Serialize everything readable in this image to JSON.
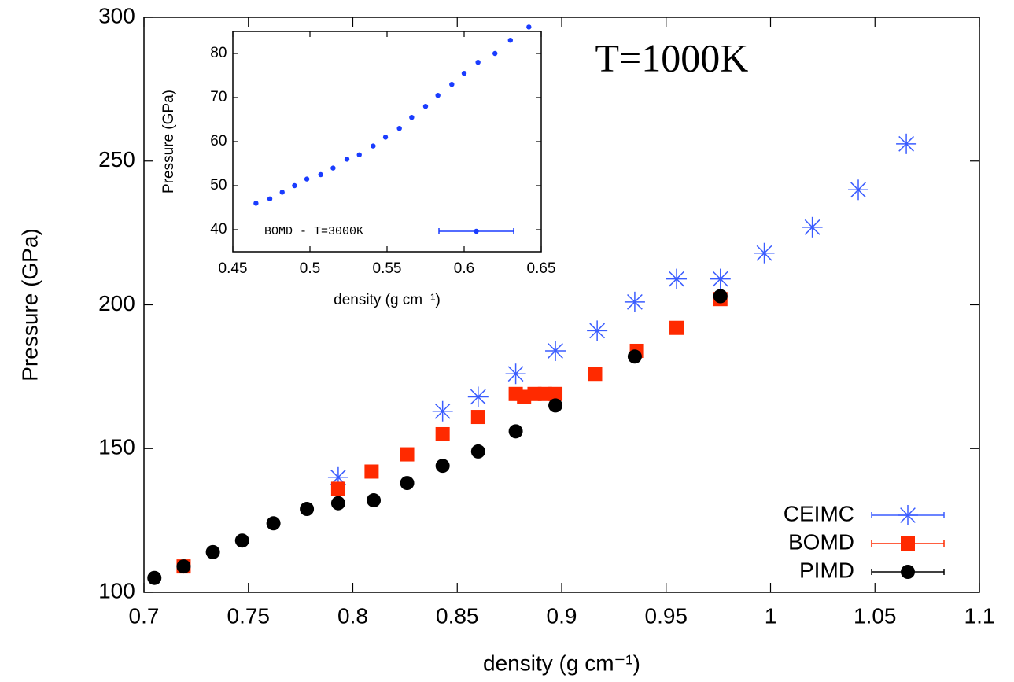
{
  "chart_data": [
    {
      "type": "scatter",
      "xlabel": "density (g cm⁻¹)",
      "ylabel": "Pressure (GPa)",
      "annotation": "T=1000K",
      "xlim": [
        0.7,
        1.1
      ],
      "ylim": [
        100,
        300
      ],
      "xticks": [
        0.7,
        0.75,
        0.8,
        0.85,
        0.9,
        0.95,
        1,
        1.05,
        1.1
      ],
      "yticks": [
        100,
        150,
        200,
        250,
        300
      ],
      "legend": "lower right",
      "series": [
        {
          "name": "CEIMC",
          "color": "#3a5cff",
          "marker": "asterisk",
          "x": [
            0.793,
            0.843,
            0.86,
            0.878,
            0.897,
            0.917,
            0.935,
            0.955,
            0.976,
            0.997,
            1.02,
            1.042,
            1.065
          ],
          "values": [
            140,
            163,
            168,
            176,
            184,
            191,
            201,
            209,
            209,
            218,
            227,
            240,
            256
          ]
        },
        {
          "name": "BOMD",
          "color": "#ff2a00",
          "marker": "square",
          "x": [
            0.719,
            0.793,
            0.809,
            0.826,
            0.843,
            0.86,
            0.878,
            0.882,
            0.887,
            0.892,
            0.897,
            0.916,
            0.936,
            0.955,
            0.976
          ],
          "values": [
            109,
            136,
            142,
            148,
            155,
            161,
            169,
            168,
            169,
            169,
            169,
            176,
            184,
            192,
            202
          ]
        },
        {
          "name": "PIMD",
          "color": "#000000",
          "marker": "circle",
          "x": [
            0.705,
            0.719,
            0.733,
            0.747,
            0.762,
            0.778,
            0.793,
            0.81,
            0.826,
            0.843,
            0.86,
            0.878,
            0.897,
            0.935,
            0.976
          ],
          "values": [
            105,
            109,
            114,
            118,
            124,
            129,
            131,
            132,
            138,
            144,
            149,
            156,
            165,
            182,
            203
          ]
        }
      ]
    },
    {
      "type": "scatter",
      "xlabel": "density (g cm⁻¹)",
      "ylabel": "Pressure (GPa)",
      "xlim": [
        0.45,
        0.65
      ],
      "ylim": [
        35,
        85
      ],
      "xticks": [
        0.45,
        0.5,
        0.55,
        0.6,
        0.65
      ],
      "yticks": [
        40,
        50,
        60,
        70,
        80
      ],
      "legend": "lower left",
      "series": [
        {
          "name": "BOMD - T=3000K",
          "color": "#1a3cff",
          "marker": "dot",
          "x": [
            0.465,
            0.474,
            0.482,
            0.49,
            0.498,
            0.507,
            0.515,
            0.524,
            0.532,
            0.541,
            0.549,
            0.558,
            0.566,
            0.575,
            0.583,
            0.592,
            0.6,
            0.609,
            0.62,
            0.63,
            0.642
          ],
          "values": [
            46,
            47,
            48.5,
            50,
            51.5,
            52.5,
            54,
            56,
            57,
            59,
            61,
            63,
            65.5,
            68,
            70.5,
            73,
            75.5,
            78,
            80,
            83,
            86
          ]
        }
      ]
    }
  ]
}
